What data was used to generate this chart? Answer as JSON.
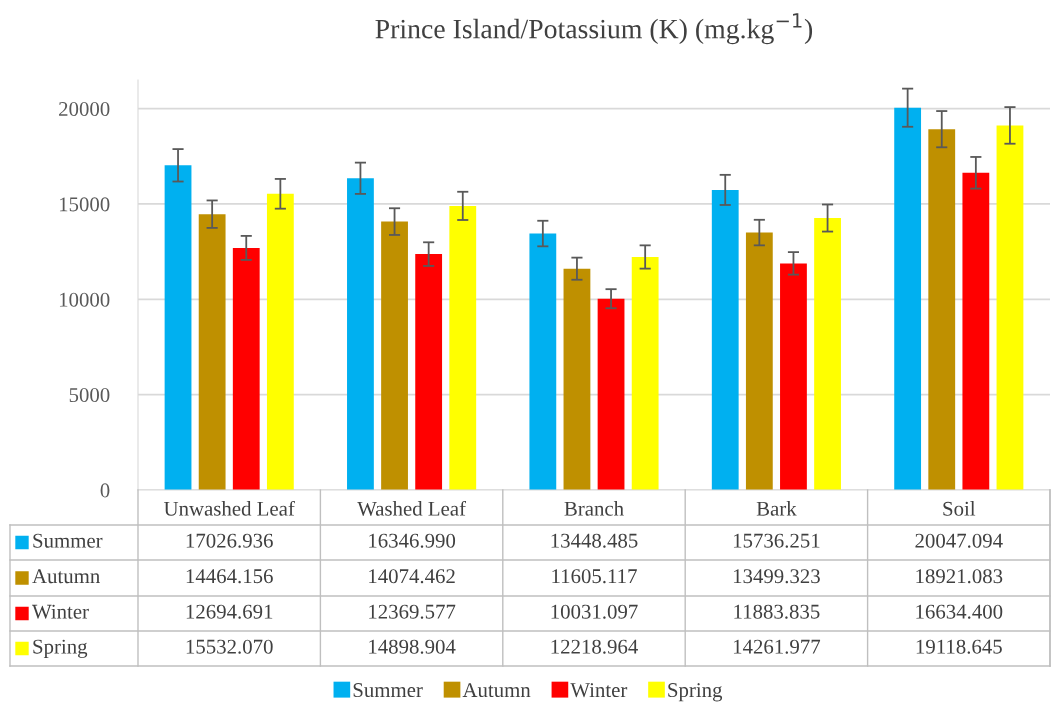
{
  "chart_data": {
    "type": "bar",
    "title": "Prince Island/Potassium (K) (mg.kg$^{−1}$)",
    "categories": [
      "Unwashed Leaf",
      "Washed Leaf",
      "Branch",
      "Bark",
      "Soil"
    ],
    "series": [
      {
        "name": "Summer",
        "color": "#00b0f0",
        "values": [
          17026.936,
          16346.99,
          13448.485,
          15736.251,
          20047.094
        ],
        "errors": [
          850,
          820,
          670,
          790,
          1000
        ],
        "value_labels": [
          "17026.936",
          "16346.990",
          "13448.485",
          "15736.251",
          "20047.094"
        ]
      },
      {
        "name": "Autumn",
        "color": "#bf9000",
        "values": [
          14464.156,
          14074.462,
          11605.117,
          13499.323,
          18921.083
        ],
        "errors": [
          720,
          700,
          580,
          670,
          950
        ],
        "value_labels": [
          "14464.156",
          "14074.462",
          "11605.117",
          "13499.323",
          "18921.083"
        ]
      },
      {
        "name": "Winter",
        "color": "#ff0000",
        "values": [
          12694.691,
          12369.577,
          10031.097,
          11883.835,
          16634.4
        ],
        "errors": [
          630,
          620,
          500,
          590,
          830
        ],
        "value_labels": [
          "12694.691",
          "12369.577",
          "10031.097",
          "11883.835",
          "16634.400"
        ]
      },
      {
        "name": "Spring",
        "color": "#ffff00",
        "values": [
          15532.07,
          14898.904,
          12218.964,
          14261.977,
          19118.645
        ],
        "errors": [
          780,
          740,
          610,
          710,
          960
        ],
        "value_labels": [
          "15532.070",
          "14898.904",
          "12218.964",
          "14261.977",
          "19118.645"
        ]
      }
    ],
    "ylim": [
      0,
      21500
    ],
    "yticks": [
      0,
      5000,
      10000,
      15000,
      20000
    ],
    "grid": "y",
    "legend": "bottom"
  }
}
